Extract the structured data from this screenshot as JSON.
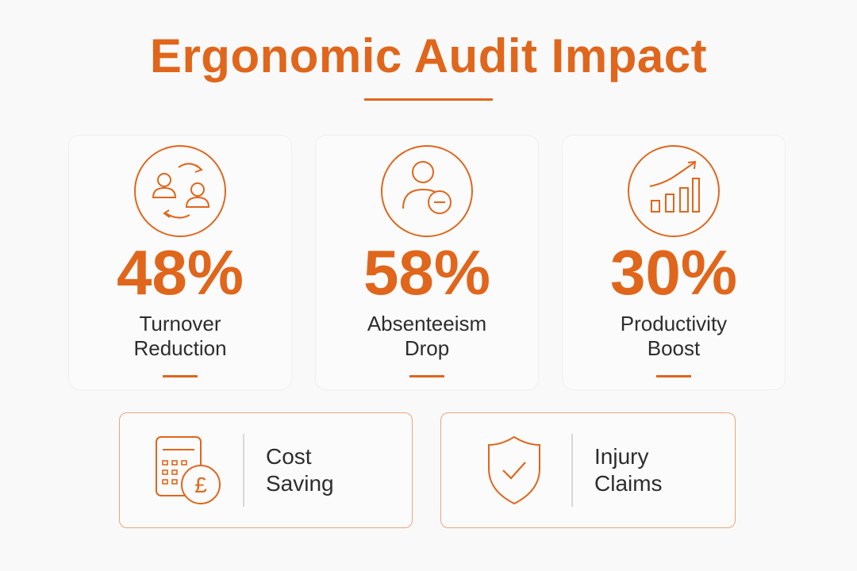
{
  "title": "Ergonomic Audit Impact",
  "colors": {
    "accent": "#e0661c",
    "text": "#2d2d2d",
    "panel_border": "#eba57a"
  },
  "stats": [
    {
      "value": "48%",
      "label_line1": "Turnover",
      "label_line2": "Reduction",
      "icon": "people-exchange-icon"
    },
    {
      "value": "58%",
      "label_line1": "Absenteeism",
      "label_line2": "Drop",
      "icon": "person-minus-icon"
    },
    {
      "value": "30%",
      "label_line1": "Productivity",
      "label_line2": "Boost",
      "icon": "growth-chart-icon"
    }
  ],
  "panels": [
    {
      "label_line1": "Cost",
      "label_line2": "Saving",
      "icon": "calculator-pound-icon",
      "icon_glyph": "£"
    },
    {
      "label_line1": "Injury",
      "label_line2": "Claims",
      "icon": "shield-check-icon"
    }
  ]
}
